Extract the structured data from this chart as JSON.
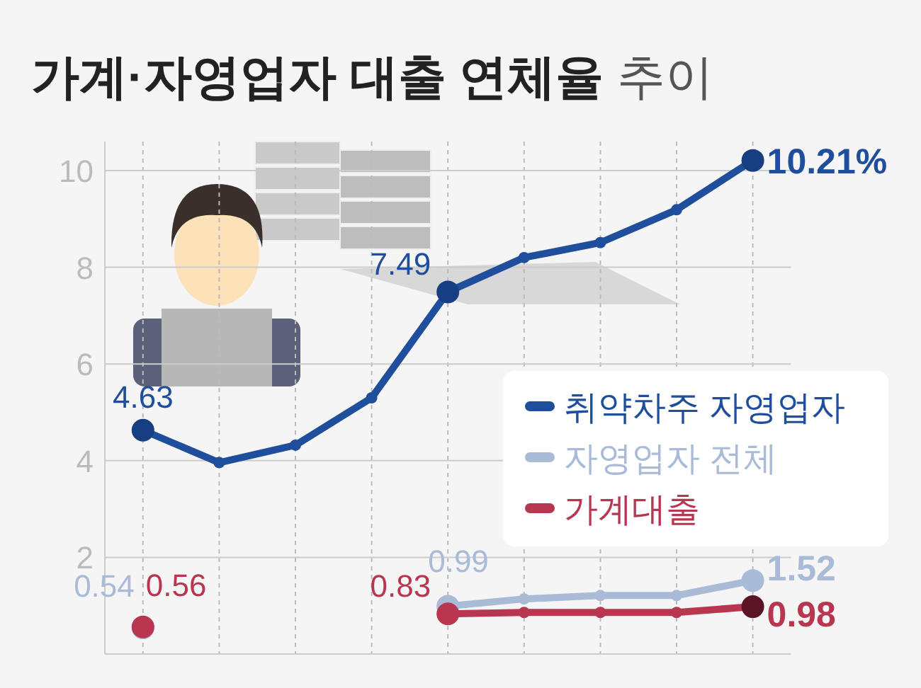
{
  "chart_data": {
    "type": "line",
    "title": "가계·자영업자 대출 연체율 추이",
    "categories": [
      null,
      null,
      null,
      null,
      null,
      null,
      null,
      null,
      null
    ],
    "series": [
      {
        "name": "취약차주 자영업자",
        "color": "#1f4e9c",
        "values": [
          4.63,
          3.96,
          4.32,
          5.3,
          7.49,
          8.2,
          8.51,
          9.19,
          10.21
        ],
        "value_labels": [
          "4.63",
          null,
          null,
          null,
          "7.49",
          null,
          null,
          null,
          "10.21%"
        ]
      },
      {
        "name": "자영업자 전체",
        "color": "#aabbd8",
        "values": [
          0.54,
          null,
          null,
          null,
          0.99,
          1.14,
          1.21,
          1.21,
          1.52
        ],
        "value_labels": [
          "0.54",
          null,
          null,
          null,
          "0.99",
          null,
          null,
          null,
          "1.52"
        ]
      },
      {
        "name": "가계대출",
        "color": "#b8364f",
        "values": [
          0.56,
          null,
          null,
          null,
          0.83,
          0.86,
          0.86,
          0.86,
          0.98
        ],
        "value_labels": [
          "0.56",
          null,
          null,
          null,
          "0.83",
          null,
          null,
          null,
          "0.98"
        ]
      }
    ],
    "ylim": [
      0,
      10.6
    ],
    "yticks": [
      2,
      4,
      6,
      8,
      10
    ],
    "grid": true,
    "legend": "right",
    "marker": "circle",
    "line_style": "solid"
  }
}
